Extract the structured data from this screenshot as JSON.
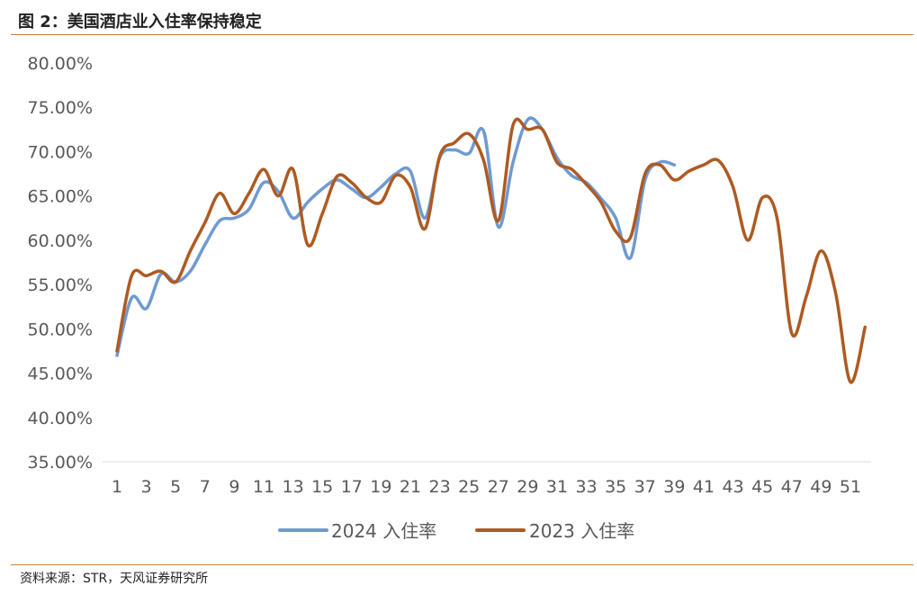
{
  "title": "图 2：美国酒店业入住率保持稳定",
  "source": "资料来源：STR，天风证券研究所",
  "colors": {
    "s2024": "#6f9ad0",
    "s2023": "#ae5a22",
    "rule": "#c5803f"
  },
  "chart_data": {
    "type": "line",
    "title": "图 2：美国酒店业入住率保持稳定",
    "xlabel": "",
    "ylabel": "",
    "x_tick_labels": [
      "1",
      "3",
      "5",
      "7",
      "9",
      "11",
      "13",
      "15",
      "17",
      "19",
      "21",
      "23",
      "25",
      "27",
      "29",
      "31",
      "33",
      "35",
      "37",
      "39",
      "41",
      "43",
      "45",
      "47",
      "49",
      "51"
    ],
    "y_tick_labels": [
      "80.00%",
      "75.00%",
      "70.00%",
      "65.00%",
      "60.00%",
      "55.00%",
      "50.00%",
      "45.00%",
      "40.00%",
      "35.00%"
    ],
    "ylim": [
      35,
      80
    ],
    "x_range": [
      1,
      52
    ],
    "legend_position": "bottom",
    "series": [
      {
        "name": "2024 入住率",
        "color": "#6f9ad0",
        "x": [
          1,
          2,
          3,
          4,
          5,
          6,
          7,
          8,
          9,
          10,
          11,
          12,
          13,
          14,
          15,
          16,
          17,
          18,
          19,
          20,
          21,
          22,
          23,
          24,
          25,
          26,
          27,
          28,
          29,
          30,
          31,
          32,
          33,
          34,
          35,
          36,
          37,
          38,
          39
        ],
        "values": [
          47.0,
          53.5,
          52.3,
          56.2,
          55.3,
          56.5,
          59.5,
          62.2,
          62.5,
          63.5,
          66.5,
          65.5,
          62.5,
          64.3,
          65.8,
          66.8,
          65.8,
          64.8,
          66.0,
          67.5,
          67.8,
          62.5,
          69.3,
          70.2,
          69.8,
          72.3,
          61.5,
          68.8,
          73.6,
          72.5,
          69.3,
          67.3,
          66.5,
          64.7,
          62.5,
          58.0,
          66.8,
          68.8,
          68.5
        ]
      },
      {
        "name": "2023 入住率",
        "color": "#ae5a22",
        "x": [
          1,
          2,
          3,
          4,
          5,
          6,
          7,
          8,
          9,
          10,
          11,
          12,
          13,
          14,
          15,
          16,
          17,
          18,
          19,
          20,
          21,
          22,
          23,
          24,
          25,
          26,
          27,
          28,
          29,
          30,
          31,
          32,
          33,
          34,
          35,
          36,
          37,
          38,
          39,
          40,
          41,
          42,
          43,
          44,
          45,
          46,
          47,
          48,
          49,
          50,
          51,
          52
        ],
        "values": [
          47.5,
          56.0,
          56.0,
          56.5,
          55.3,
          58.8,
          62.0,
          65.3,
          63.0,
          65.3,
          68.0,
          65.0,
          68.0,
          59.5,
          63.0,
          67.2,
          66.5,
          64.8,
          64.3,
          67.3,
          66.0,
          61.3,
          69.5,
          71.0,
          72.0,
          69.0,
          62.2,
          73.0,
          72.5,
          72.5,
          68.8,
          68.0,
          66.3,
          64.3,
          61.0,
          60.3,
          67.5,
          68.5,
          66.8,
          67.8,
          68.5,
          69.0,
          66.0,
          60.0,
          64.8,
          62.5,
          49.5,
          53.7,
          58.8,
          54.0,
          44.0,
          50.2
        ]
      }
    ]
  }
}
